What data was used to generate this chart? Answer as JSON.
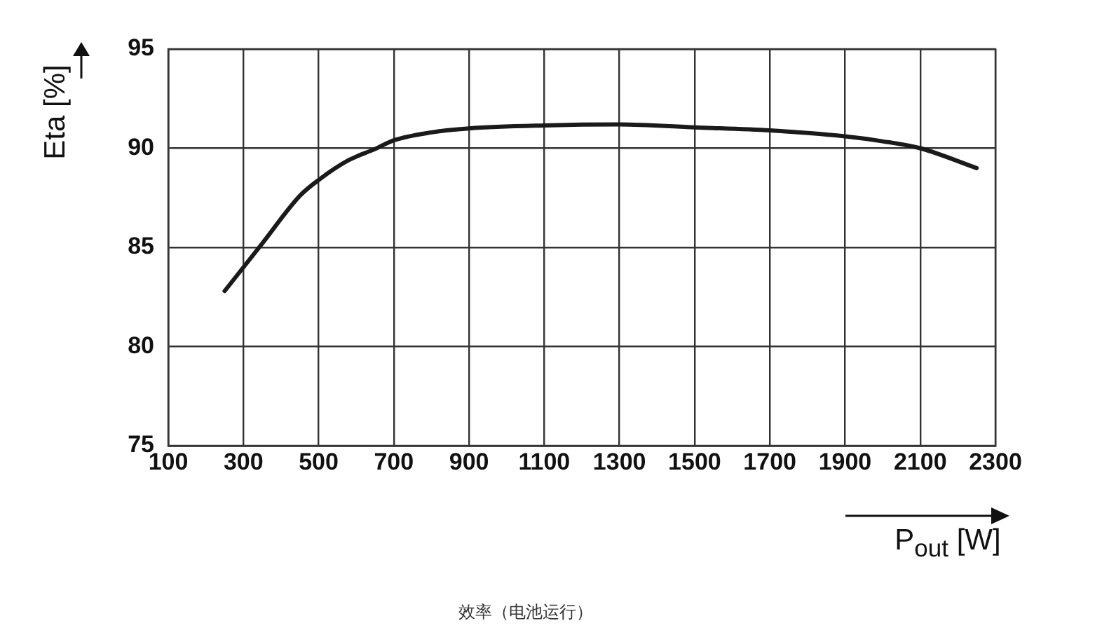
{
  "chart_data": {
    "type": "line",
    "xlabel": "P$_{out}$ [W]",
    "ylabel": "Eta [%]",
    "annotations": [
      "效率（电池运行）"
    ],
    "x": [
      250,
      350,
      450,
      500,
      580,
      650,
      700,
      800,
      900,
      1100,
      1300,
      1500,
      1700,
      1900,
      2000,
      2100,
      2250
    ],
    "series": [
      {
        "color": "#1a1a1a",
        "values": [
          82.8,
          85.2,
          87.6,
          88.4,
          89.4,
          89.96,
          90.4,
          90.8,
          91.0,
          91.15,
          91.2,
          91.05,
          90.9,
          90.6,
          90.35,
          90.0,
          89.0
        ]
      }
    ],
    "xlim": [
      100,
      2300
    ],
    "xticks": [
      100,
      300,
      500,
      700,
      900,
      1100,
      1300,
      1500,
      1700,
      1900,
      2100,
      2300
    ],
    "ylim": [
      75,
      95
    ],
    "yticks": [
      75,
      80,
      85,
      90,
      95
    ],
    "grid": true,
    "marker": "none",
    "line_style": "solid"
  }
}
